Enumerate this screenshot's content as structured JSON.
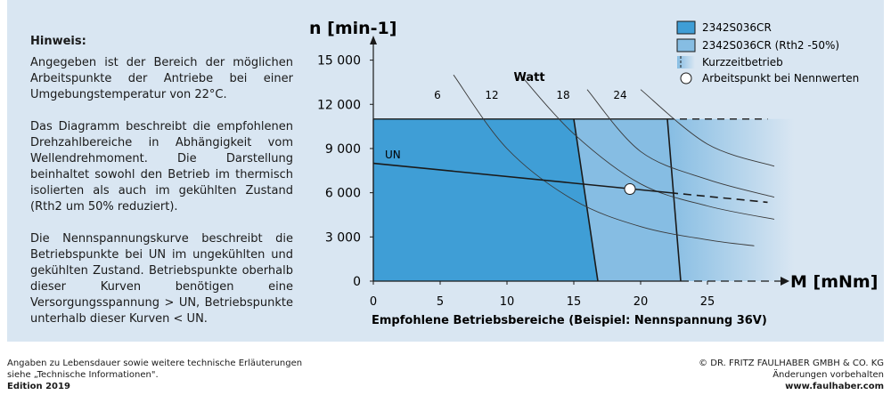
{
  "note": {
    "heading": "Hinweis:",
    "paragraphs": [
      "Angegeben ist der Bereich der möglichen Arbeitspunkte der Antriebe bei einer Umgebungstemperatur von 22°C.",
      "Das Diagramm beschreibt die empfohlenen Drehzahlbereiche in Abhängigkeit vom Wellendrehmoment. Die Darstellung beinhaltet sowohl den Betrieb im thermisch isolierten als auch im gekühlten Zustand (Rth2 um 50% reduziert).",
      "Die Nennspannungskurve beschreibt die Betriebspunkte bei UN im ungekühlten und gekühlten Zustand. Betriebspunkte oberhalb dieser Kurven benötigen eine Versorgungsspannung > UN, Betriebspunkte unterhalb dieser Kurven < UN."
    ]
  },
  "chart_data": {
    "type": "area",
    "title": "Empfohlene Betriebsbereiche (Beispiel: Nennspannung 36V)",
    "xlabel": "M [mNm]",
    "ylabel": "n [min-1]",
    "xlim": [
      0,
      30
    ],
    "ylim": [
      0,
      16000
    ],
    "xticks": [
      0,
      5,
      10,
      15,
      20,
      25
    ],
    "yticks": [
      0,
      3000,
      6000,
      9000,
      12000,
      15000
    ],
    "ytick_labels": [
      "0",
      "3 000",
      "6 000",
      "9 000",
      "12 000",
      "15 000"
    ],
    "regions": [
      {
        "name": "2342S036CR",
        "color": "#3f9ed6",
        "polygon": [
          [
            0,
            0
          ],
          [
            0,
            11000
          ],
          [
            15,
            11000
          ],
          [
            16.8,
            0
          ]
        ]
      },
      {
        "name": "2342S036CR (Rth2 -50%)",
        "color": "#86bde3",
        "polygon": [
          [
            15,
            11000
          ],
          [
            22,
            11000
          ],
          [
            23,
            0
          ],
          [
            16.8,
            0
          ]
        ]
      },
      {
        "name": "Kurzzeitbetrieb",
        "color": "#86bde3",
        "polygon": [
          [
            22,
            11000
          ],
          [
            31.5,
            11000
          ],
          [
            31.5,
            0
          ],
          [
            23,
            0
          ]
        ]
      }
    ],
    "speed_limit": {
      "y": 11000,
      "x_solid_end": 22,
      "x_dashed_end": 29.5
    },
    "nominal_voltage_line": {
      "label": "UN",
      "points": [
        [
          0,
          8000
        ],
        [
          22.2,
          6000
        ]
      ],
      "dashed_to": [
        [
          22.2,
          6000
        ],
        [
          29.5,
          5350
        ]
      ]
    },
    "watt_title": "Watt",
    "watt_curves": [
      {
        "label": "6",
        "points": [
          [
            6,
            14000
          ],
          [
            10,
            9000
          ],
          [
            15,
            5500
          ],
          [
            20,
            3700
          ],
          [
            25,
            2800
          ],
          [
            28.5,
            2400
          ]
        ]
      },
      {
        "label": "12",
        "points": [
          [
            11,
            14000
          ],
          [
            15,
            10000
          ],
          [
            20,
            6600
          ],
          [
            25,
            5100
          ],
          [
            30,
            4200
          ]
        ]
      },
      {
        "label": "18",
        "points": [
          [
            16,
            13000
          ],
          [
            20,
            8800
          ],
          [
            25,
            6900
          ],
          [
            30,
            5700
          ]
        ]
      },
      {
        "label": "24",
        "points": [
          [
            20,
            13000
          ],
          [
            25,
            9300
          ],
          [
            30,
            7800
          ]
        ]
      }
    ],
    "operating_point": {
      "x": 19.2,
      "y": 6250
    },
    "legend": {
      "placement": "top-right",
      "items": [
        {
          "label": "2342S036CR",
          "color": "#3f9ed6",
          "kind": "box"
        },
        {
          "label": "2342S036CR (Rth2 -50%)",
          "color": "#86bde3",
          "kind": "box"
        },
        {
          "label": "Kurzzeitbetrieb",
          "color": "#86bde3",
          "kind": "gradient"
        },
        {
          "label": "Arbeitspunkt bei Nennwerten",
          "color": "#ffffff",
          "kind": "circle"
        }
      ]
    }
  },
  "footer": {
    "left_line1": "Angaben zu Lebensdauer sowie weitere technische Erläuterungen",
    "left_line2": "siehe „Technische Informationen\".",
    "edition": "Edition 2019",
    "right_line1": "© DR. FRITZ FAULHABER GMBH & CO. KG",
    "right_line2": "Änderungen vorbehalten",
    "website": "www.faulhaber.com"
  }
}
